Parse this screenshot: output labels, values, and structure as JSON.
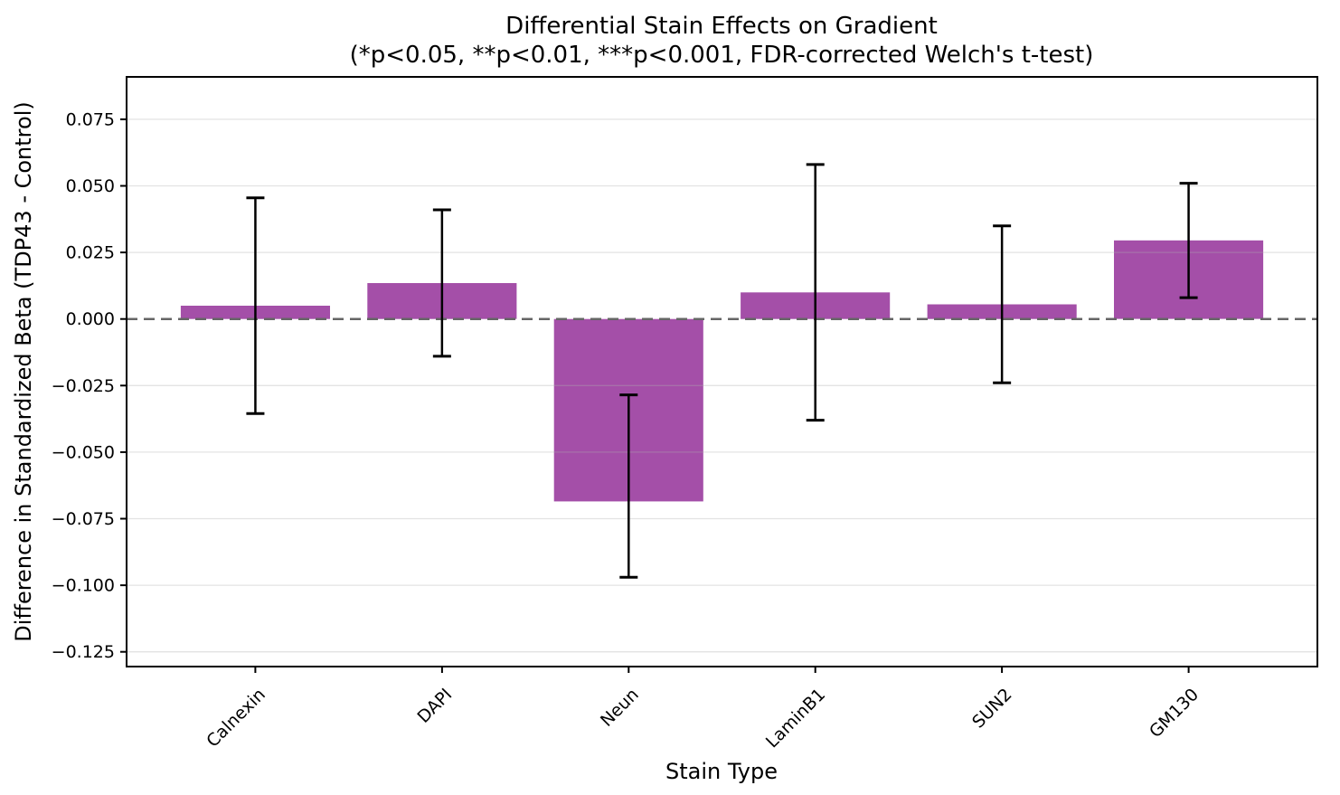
{
  "figure": {
    "background": "#ffffff"
  },
  "chart_data": {
    "type": "bar",
    "title": "Differential Stain Effects on Gradient",
    "subtitle": "(*p<0.05, **p<0.01, ***p<0.001, FDR-corrected Welch's t-test)",
    "xlabel": "Stain Type",
    "ylabel": "Difference in Standardized Beta (TDP43 - Control)",
    "categories": [
      "Calnexin",
      "DAPI",
      "Neun",
      "LaminB1",
      "SUN2",
      "GM130"
    ],
    "values": [
      0.005,
      0.0135,
      -0.0685,
      0.01,
      0.0055,
      0.0295
    ],
    "errors": [
      0.0405,
      0.0275,
      0.0285,
      0.048,
      0.0295,
      0.0215
    ],
    "ci_low": [
      -0.0355,
      -0.014,
      -0.097,
      -0.038,
      -0.024,
      0.008
    ],
    "ci_high": [
      0.0455,
      0.041,
      -0.0285,
      0.058,
      0.035,
      0.051
    ],
    "yticks": [
      0.075,
      0.05,
      0.025,
      0.0,
      -0.025,
      -0.05,
      -0.075,
      -0.1,
      -0.125
    ],
    "ytick_labels": [
      "0.075",
      "0.050",
      "0.025",
      "0.000",
      "−0.025",
      "−0.050",
      "−0.075",
      "−0.100",
      "−0.125"
    ],
    "ylim": [
      -0.13054,
      0.09093
    ],
    "grid": "horizontal",
    "legend": "none",
    "zero_line": {
      "value": 0.0,
      "style": "dashed",
      "color": "#666666"
    },
    "colors": {
      "bar": "#A44FA8",
      "error_bar": "#000000",
      "grid": "#b0b0b0",
      "spine": "#000000",
      "zero_line": "#666666"
    }
  }
}
